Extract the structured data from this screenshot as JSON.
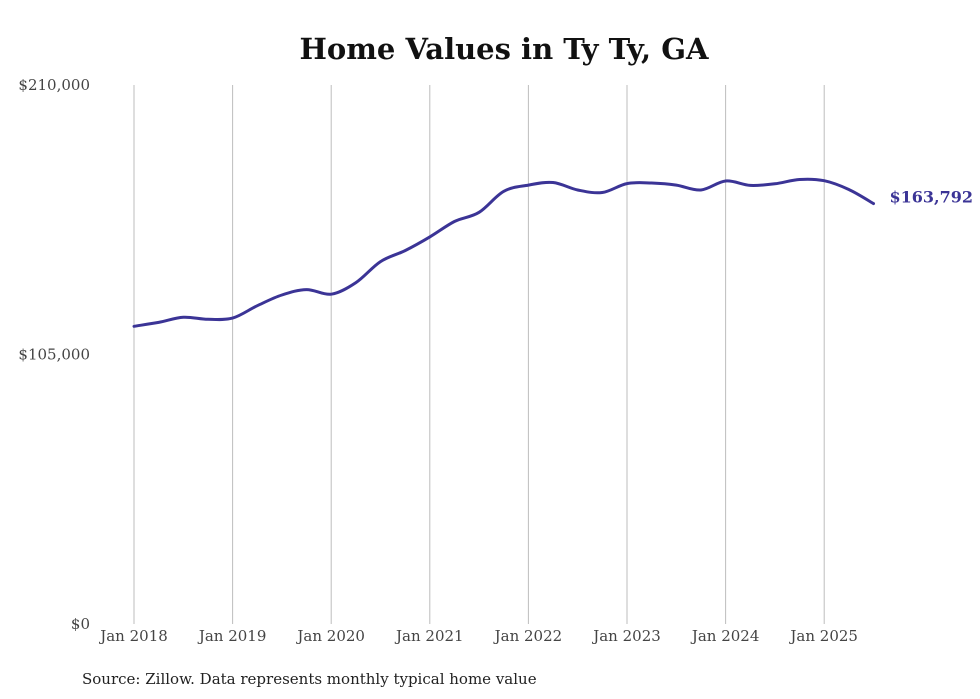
{
  "chart_data": {
    "type": "line",
    "title": "Home Values in Ty Ty, GA",
    "source": "Source: Zillow. Data represents monthly typical home value",
    "ylim": [
      0,
      210000
    ],
    "xlim": [
      "2018-01",
      "2025-07"
    ],
    "y_ticks": [
      {
        "value": 0,
        "label": "$0"
      },
      {
        "value": 105000,
        "label": "$105,000"
      },
      {
        "value": 210000,
        "label": "$210,000"
      }
    ],
    "x_ticks": [
      {
        "value": "2018-01",
        "label": "Jan 2018"
      },
      {
        "value": "2019-01",
        "label": "Jan 2019"
      },
      {
        "value": "2020-01",
        "label": "Jan 2020"
      },
      {
        "value": "2021-01",
        "label": "Jan 2021"
      },
      {
        "value": "2022-01",
        "label": "Jan 2022"
      },
      {
        "value": "2023-01",
        "label": "Jan 2023"
      },
      {
        "value": "2024-01",
        "label": "Jan 2024"
      },
      {
        "value": "2025-01",
        "label": "Jan 2025"
      }
    ],
    "grid": "vertical",
    "line_color": "#3b3496",
    "end_label": "$163,792",
    "series": [
      {
        "x": [
          "2018-01",
          "2018-04",
          "2018-07",
          "2018-10",
          "2019-01",
          "2019-04",
          "2019-07",
          "2019-10",
          "2020-01",
          "2020-04",
          "2020-07",
          "2020-10",
          "2021-01",
          "2021-04",
          "2021-07",
          "2021-10",
          "2022-01",
          "2022-04",
          "2022-07",
          "2022-10",
          "2023-01",
          "2023-04",
          "2023-07",
          "2023-10",
          "2024-01",
          "2024-04",
          "2024-07",
          "2024-10",
          "2025-01",
          "2025-04",
          "2025-07"
        ],
        "y": [
          116000,
          117500,
          119500,
          118700,
          119200,
          124000,
          128200,
          130300,
          128500,
          133000,
          141200,
          145500,
          150800,
          156800,
          160400,
          168600,
          171000,
          172000,
          169100,
          168100,
          171600,
          171800,
          171000,
          169100,
          172600,
          170900,
          171500,
          173200,
          172700,
          169300,
          163792
        ]
      }
    ]
  }
}
